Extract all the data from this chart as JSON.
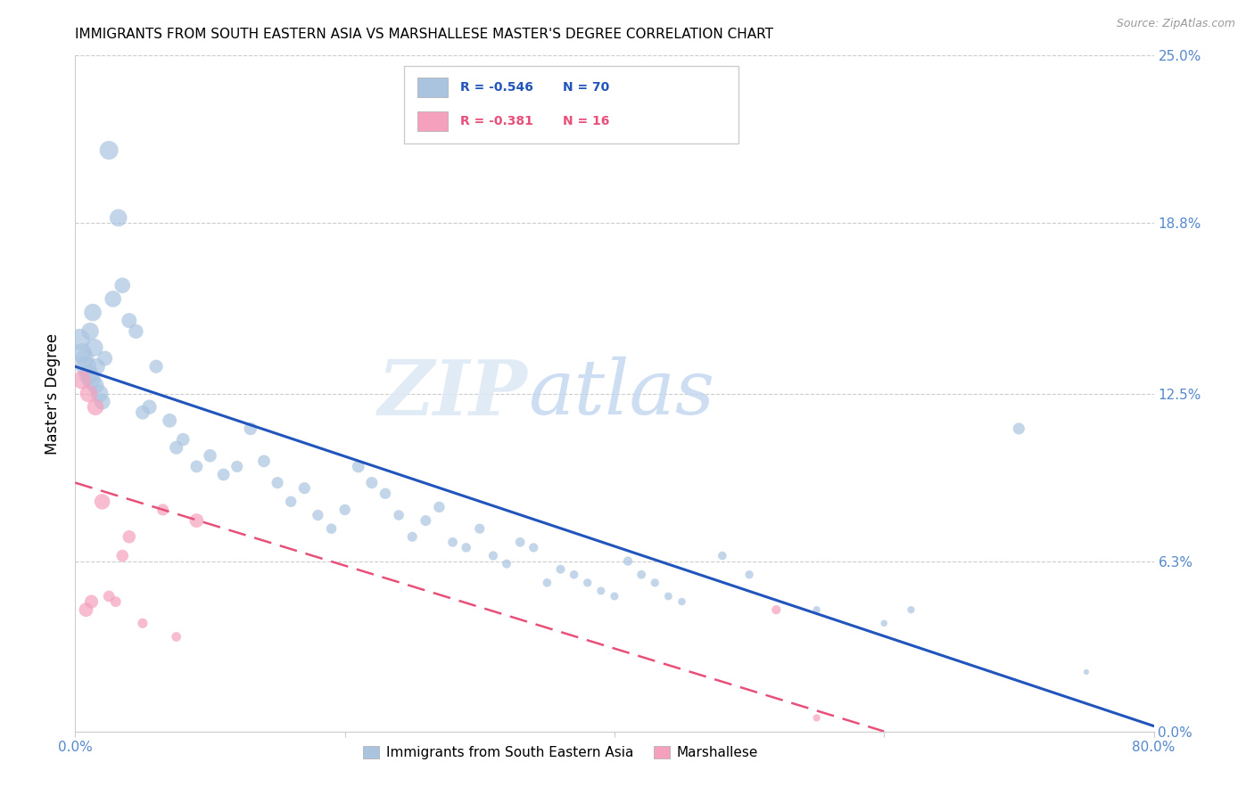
{
  "title": "IMMIGRANTS FROM SOUTH EASTERN ASIA VS MARSHALLESE MASTER'S DEGREE CORRELATION CHART",
  "source": "Source: ZipAtlas.com",
  "ylabel": "Master's Degree",
  "ytick_values": [
    0.0,
    6.3,
    12.5,
    18.8,
    25.0
  ],
  "xlim": [
    0.0,
    80.0
  ],
  "ylim": [
    0.0,
    25.0
  ],
  "legend_r1": "R = -0.546",
  "legend_n1": "N = 70",
  "legend_r2": "R = -0.381",
  "legend_n2": "N = 16",
  "watermark_zip": "ZIP",
  "watermark_atlas": "atlas",
  "blue_color": "#aac4e0",
  "blue_line_color": "#2255bb",
  "pink_color": "#f5a0bc",
  "pink_line_color": "#e8507a",
  "blue_scatter_x": [
    0.3,
    0.5,
    0.7,
    0.8,
    1.0,
    1.1,
    1.2,
    1.3,
    1.4,
    1.5,
    1.6,
    1.8,
    2.0,
    2.2,
    2.5,
    2.8,
    3.2,
    3.5,
    4.0,
    4.5,
    5.0,
    5.5,
    6.0,
    7.0,
    7.5,
    8.0,
    9.0,
    10.0,
    11.0,
    12.0,
    13.0,
    14.0,
    15.0,
    16.0,
    17.0,
    18.0,
    19.0,
    20.0,
    21.0,
    22.0,
    23.0,
    24.0,
    25.0,
    26.0,
    27.0,
    28.0,
    29.0,
    30.0,
    31.0,
    32.0,
    33.0,
    34.0,
    35.0,
    36.0,
    37.0,
    38.0,
    39.0,
    40.0,
    41.0,
    42.0,
    43.0,
    44.0,
    45.0,
    48.0,
    50.0,
    55.0,
    60.0,
    62.0,
    70.0,
    75.0
  ],
  "blue_scatter_y": [
    14.5,
    14.0,
    13.8,
    13.5,
    13.2,
    14.8,
    13.0,
    15.5,
    14.2,
    12.8,
    13.5,
    12.5,
    12.2,
    13.8,
    21.5,
    16.0,
    19.0,
    16.5,
    15.2,
    14.8,
    11.8,
    12.0,
    13.5,
    11.5,
    10.5,
    10.8,
    9.8,
    10.2,
    9.5,
    9.8,
    11.2,
    10.0,
    9.2,
    8.5,
    9.0,
    8.0,
    7.5,
    8.2,
    9.8,
    9.2,
    8.8,
    8.0,
    7.2,
    7.8,
    8.3,
    7.0,
    6.8,
    7.5,
    6.5,
    6.2,
    7.0,
    6.8,
    5.5,
    6.0,
    5.8,
    5.5,
    5.2,
    5.0,
    6.3,
    5.8,
    5.5,
    5.0,
    4.8,
    6.5,
    5.8,
    4.5,
    4.0,
    4.5,
    11.2,
    2.2
  ],
  "blue_scatter_size": [
    300,
    250,
    220,
    280,
    260,
    200,
    230,
    200,
    210,
    190,
    180,
    200,
    170,
    150,
    230,
    180,
    200,
    160,
    150,
    140,
    130,
    140,
    120,
    130,
    120,
    110,
    100,
    110,
    100,
    90,
    110,
    100,
    90,
    80,
    90,
    80,
    70,
    80,
    100,
    90,
    80,
    70,
    65,
    75,
    80,
    60,
    58,
    65,
    55,
    52,
    60,
    55,
    48,
    52,
    48,
    45,
    42,
    42,
    55,
    50,
    45,
    40,
    38,
    48,
    45,
    35,
    30,
    35,
    90,
    20
  ],
  "pink_scatter_x": [
    0.5,
    0.8,
    1.0,
    1.2,
    1.5,
    2.0,
    2.5,
    3.0,
    3.5,
    4.0,
    5.0,
    6.5,
    7.5,
    9.0,
    52.0,
    55.0
  ],
  "pink_scatter_y": [
    13.0,
    4.5,
    12.5,
    4.8,
    12.0,
    8.5,
    5.0,
    4.8,
    6.5,
    7.2,
    4.0,
    8.2,
    3.5,
    7.8,
    4.5,
    0.5
  ],
  "pink_scatter_size": [
    220,
    130,
    200,
    120,
    180,
    160,
    85,
    75,
    95,
    110,
    65,
    90,
    60,
    130,
    55,
    35
  ],
  "blue_line_x0": 0.0,
  "blue_line_y0": 13.5,
  "blue_line_x1": 80.0,
  "blue_line_y1": 0.2,
  "pink_line_x0": 0.0,
  "pink_line_y0": 9.2,
  "pink_line_x1": 60.0,
  "pink_line_y1": 0.0,
  "title_fontsize": 11,
  "axis_label_color": "#5588cc",
  "tick_label_color": "#5588cc"
}
